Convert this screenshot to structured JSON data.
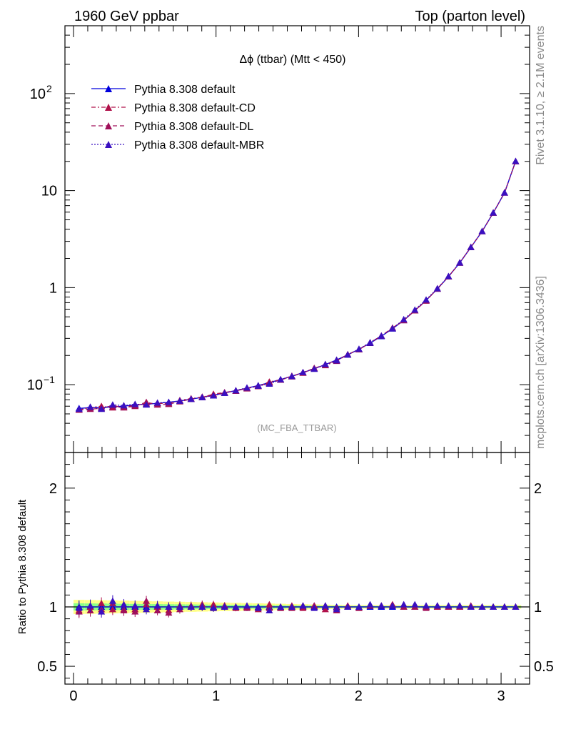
{
  "header": {
    "left": "1960 GeV ppbar",
    "right": "Top (parton level)"
  },
  "side_text": {
    "top": "Rivet 3.1.10, ≥ 2.1M events",
    "bottom": "mcplots.cern.ch [arXiv:1306.3436]"
  },
  "plot_title": "Δϕ (ttbar) (Mtt < 450)",
  "analysis_tag": "(MC_FBA_TTBAR)",
  "ratio_ylabel": "Ratio to Pythia 8.308 default",
  "colors": {
    "default": "#0000dd",
    "cd": "#b0104a",
    "dl": "#a0105a",
    "mbr": "#3a10c0",
    "band_yellow": "#ffff88",
    "band_green": "#88ff88"
  },
  "chart_data": [
    {
      "type": "line",
      "yscale": "log",
      "xlim": [
        -0.06,
        3.2
      ],
      "ylim": [
        0.02,
        500
      ],
      "x_ticks": [
        0,
        1,
        2,
        3
      ],
      "y_tick_labels": [
        {
          "value": 0.1,
          "label": "10",
          "exp": "−1"
        },
        {
          "value": 1,
          "label": "1",
          "exp": ""
        },
        {
          "value": 10,
          "label": "10",
          "exp": ""
        },
        {
          "value": 100,
          "label": "10",
          "exp": "2"
        }
      ],
      "x": [
        0.039,
        0.118,
        0.196,
        0.275,
        0.353,
        0.432,
        0.511,
        0.589,
        0.668,
        0.746,
        0.825,
        0.903,
        0.982,
        1.06,
        1.139,
        1.217,
        1.296,
        1.374,
        1.453,
        1.532,
        1.61,
        1.689,
        1.767,
        1.846,
        1.924,
        2.003,
        2.081,
        2.16,
        2.238,
        2.317,
        2.395,
        2.474,
        2.553,
        2.631,
        2.71,
        2.788,
        2.867,
        2.945,
        3.024,
        3.102
      ],
      "series": [
        {
          "name": "Pythia 8.308 default",
          "style": "solid",
          "values": [
            0.057,
            0.058,
            0.058,
            0.059,
            0.06,
            0.062,
            0.063,
            0.064,
            0.066,
            0.068,
            0.071,
            0.074,
            0.078,
            0.082,
            0.087,
            0.092,
            0.098,
            0.105,
            0.113,
            0.122,
            0.133,
            0.146,
            0.161,
            0.18,
            0.203,
            0.232,
            0.268,
            0.315,
            0.377,
            0.46,
            0.58,
            0.74,
            0.97,
            1.3,
            1.8,
            2.6,
            3.8,
            5.9,
            9.5,
            20.0
          ]
        },
        {
          "name": "Pythia 8.308 default-CD",
          "style": "dashdot",
          "values": [
            0.055,
            0.058,
            0.06,
            0.058,
            0.059,
            0.061,
            0.064,
            0.064,
            0.064,
            0.069,
            0.072,
            0.074,
            0.08,
            0.083,
            0.086,
            0.092,
            0.096,
            0.107,
            0.112,
            0.123,
            0.132,
            0.148,
            0.158,
            0.175,
            0.205,
            0.23,
            0.271,
            0.318,
            0.385,
            0.46,
            0.58,
            0.74,
            0.97,
            1.3,
            1.81,
            2.6,
            3.8,
            5.9,
            9.5,
            20.0
          ]
        },
        {
          "name": "Pythia 8.308 default-DL",
          "style": "dashed",
          "values": [
            0.055,
            0.056,
            0.057,
            0.061,
            0.058,
            0.06,
            0.066,
            0.062,
            0.063,
            0.067,
            0.071,
            0.075,
            0.077,
            0.083,
            0.087,
            0.091,
            0.097,
            0.104,
            0.112,
            0.121,
            0.134,
            0.147,
            0.162,
            0.178,
            0.204,
            0.23,
            0.27,
            0.319,
            0.38,
            0.46,
            0.58,
            0.73,
            0.98,
            1.3,
            1.8,
            2.62,
            3.8,
            5.9,
            9.5,
            20.0
          ]
        },
        {
          "name": "Pythia 8.308 default-MBR",
          "style": "dotted",
          "values": [
            0.056,
            0.059,
            0.056,
            0.062,
            0.061,
            0.063,
            0.062,
            0.065,
            0.066,
            0.068,
            0.071,
            0.074,
            0.077,
            0.082,
            0.087,
            0.093,
            0.097,
            0.102,
            0.113,
            0.122,
            0.134,
            0.145,
            0.162,
            0.177,
            0.204,
            0.233,
            0.272,
            0.318,
            0.38,
            0.47,
            0.59,
            0.75,
            0.98,
            1.31,
            1.81,
            2.61,
            3.81,
            5.92,
            9.52,
            20.1
          ]
        }
      ]
    },
    {
      "type": "line",
      "xlim": [
        -0.06,
        3.2
      ],
      "ylim": [
        0.35,
        2.3
      ],
      "x_ticks": [
        0,
        1,
        2,
        3
      ],
      "y_ticks": [
        0.5,
        1,
        2
      ],
      "ylabel": "Ratio to Pythia 8.308 default",
      "series": [
        {
          "name": "Pythia 8.308 default",
          "values": [
            1,
            1,
            1,
            1,
            1,
            1,
            1,
            1,
            1,
            1,
            1,
            1,
            1,
            1,
            1,
            1,
            1,
            1,
            1,
            1,
            1,
            1,
            1,
            1,
            1,
            1,
            1,
            1,
            1,
            1,
            1,
            1,
            1,
            1,
            1,
            1,
            1,
            1,
            1,
            1
          ]
        },
        {
          "name": "Pythia 8.308 default-CD",
          "values": [
            0.97,
            1.0,
            1.03,
            0.98,
            0.98,
            0.98,
            1.02,
            1.0,
            0.97,
            1.01,
            1.01,
            1.0,
            1.02,
            1.01,
            0.99,
            1.0,
            0.98,
            1.02,
            0.99,
            1.01,
            0.99,
            1.01,
            0.98,
            0.97,
            1.01,
            0.99,
            1.01,
            1.01,
            1.02,
            1.0,
            1.0,
            1.0,
            1.0,
            1.0,
            1.01,
            1.0,
            1.0,
            1.0,
            1.0,
            1.0
          ]
        },
        {
          "name": "Pythia 8.308 default-DL",
          "values": [
            0.96,
            0.97,
            0.98,
            1.03,
            0.97,
            0.96,
            1.05,
            0.97,
            0.95,
            0.98,
            1.0,
            1.02,
            0.99,
            1.01,
            1.0,
            0.99,
            0.99,
            0.99,
            0.99,
            0.99,
            1.01,
            1.01,
            1.01,
            0.99,
            1.0,
            0.99,
            1.01,
            1.01,
            1.01,
            1.0,
            1.0,
            0.99,
            1.01,
            1.0,
            1.0,
            1.01,
            1.0,
            1.0,
            1.0,
            1.0
          ]
        },
        {
          "name": "Pythia 8.308 default-MBR",
          "values": [
            0.99,
            1.01,
            0.96,
            1.05,
            1.02,
            1.01,
            0.98,
            1.01,
            1.0,
            1.0,
            1.0,
            1.0,
            0.99,
            1.0,
            1.0,
            1.01,
            0.99,
            0.97,
            1.0,
            1.0,
            1.01,
            0.99,
            1.01,
            0.98,
            1.0,
            1.0,
            1.02,
            1.01,
            1.01,
            1.02,
            1.02,
            1.01,
            1.01,
            1.01,
            1.01,
            1.0,
            1.0,
            1.0,
            1.0,
            1.0
          ]
        }
      ]
    }
  ]
}
